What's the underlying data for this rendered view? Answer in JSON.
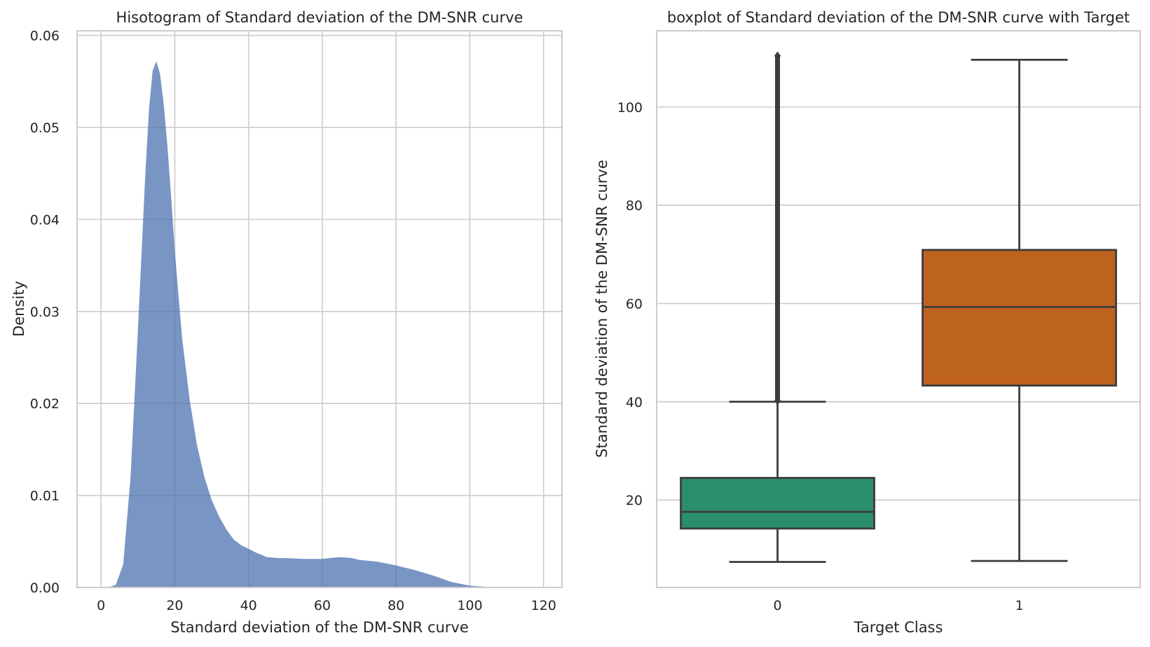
{
  "chart_data": [
    {
      "type": "area",
      "title": "Hisotogram of Standard deviation of the DM-SNR curve",
      "xlabel": "Standard deviation of the DM-SNR curve",
      "ylabel": "Density",
      "xlim": [
        -6.5,
        125
      ],
      "ylim": [
        0,
        0.0605
      ],
      "xticks": [
        0,
        20,
        40,
        60,
        80,
        100,
        120
      ],
      "yticks": [
        0,
        0.01,
        0.02,
        0.03,
        0.04,
        0.05,
        0.06
      ],
      "ytick_labels": [
        "0.00",
        "0.01",
        "0.02",
        "0.03",
        "0.04",
        "0.05",
        "0.06"
      ],
      "grid": true,
      "color": "#4c72b0",
      "series": [
        {
          "x": [
            2,
            4,
            6,
            8,
            10,
            12,
            13,
            14,
            15,
            16,
            17,
            18,
            19,
            20,
            22,
            24,
            26,
            28,
            30,
            32,
            34,
            36,
            38,
            40,
            42,
            45,
            48,
            50,
            55,
            60,
            62,
            65,
            68,
            70,
            75,
            80,
            85,
            90,
            95,
            100,
            105,
            110,
            113
          ],
          "y": [
            0,
            0.0003,
            0.0025,
            0.012,
            0.028,
            0.045,
            0.052,
            0.0562,
            0.0572,
            0.0558,
            0.0525,
            0.048,
            0.0425,
            0.0365,
            0.027,
            0.0205,
            0.0155,
            0.012,
            0.0095,
            0.0077,
            0.0063,
            0.0052,
            0.0046,
            0.0042,
            0.0038,
            0.0033,
            0.0032,
            0.0032,
            0.0031,
            0.0031,
            0.0032,
            0.0033,
            0.0032,
            0.003,
            0.0028,
            0.0024,
            0.0019,
            0.0013,
            0.0006,
            0.0002,
            5e-05,
            0,
            0
          ]
        }
      ]
    },
    {
      "type": "box",
      "title": "boxplot of Standard deviation of the DM-SNR curve with Target",
      "xlabel": "Target Class",
      "ylabel": "Standard deviation of the DM-SNR curve",
      "categories": [
        "0",
        "1"
      ],
      "ylim": [
        2.2,
        115.5
      ],
      "yticks": [
        20,
        40,
        60,
        80,
        100
      ],
      "grid": true,
      "boxes": [
        {
          "category": "0",
          "color": "#2a8e6e",
          "whisker_low": 7.4,
          "q1": 14.2,
          "median": 17.6,
          "q3": 24.5,
          "whisker_high": 40.0,
          "outliers_from": 40.0,
          "outliers_to": 110.6
        },
        {
          "category": "1",
          "color": "#be621f",
          "whisker_low": 7.6,
          "q1": 43.3,
          "median": 59.3,
          "q3": 70.9,
          "whisker_high": 109.6
        }
      ]
    }
  ]
}
